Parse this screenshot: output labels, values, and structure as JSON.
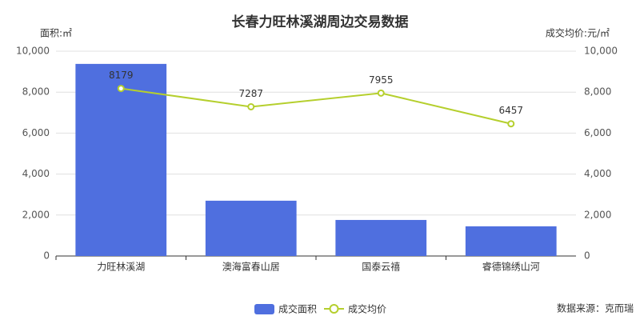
{
  "chart_data": {
    "type": "bar",
    "title": "长春力旺林溪湖周边交易数据",
    "categories": [
      "力旺林溪湖",
      "澳海富春山居",
      "国泰云禧",
      "睿德锦绣山河"
    ],
    "y_label": "面积:㎡",
    "y2_label": "成交均价:元/㎡",
    "ylim": [
      0,
      10000
    ],
    "yticks": [
      0,
      {
        "value": 2000,
        "label": "2,000"
      },
      {
        "value": 4000,
        "label": "4,000"
      },
      {
        "value": 6000,
        "label": "6,000"
      },
      {
        "value": 8000,
        "label": "8,000"
      },
      {
        "value": 10000,
        "label": "10,000"
      }
    ],
    "y2lim": [
      0,
      10000
    ],
    "y2ticks": [
      0,
      {
        "value": 2000,
        "label": "2,000"
      },
      {
        "value": 4000,
        "label": "4,000"
      },
      {
        "value": 6000,
        "label": "6,000"
      },
      {
        "value": 8000,
        "label": "8,000"
      },
      {
        "value": 10000,
        "label": "10,000"
      }
    ],
    "grid": true,
    "series": [
      {
        "name": "成交面积",
        "type": "bar",
        "color": "#4f6fdf",
        "values": [
          9380,
          2700,
          1760,
          1450
        ]
      },
      {
        "name": "成交均价",
        "type": "line",
        "axis": "y2",
        "color": "#b5cf2d",
        "values": [
          8179,
          7287,
          7955,
          6457
        ]
      }
    ],
    "source": "数据来源：克而瑞"
  }
}
